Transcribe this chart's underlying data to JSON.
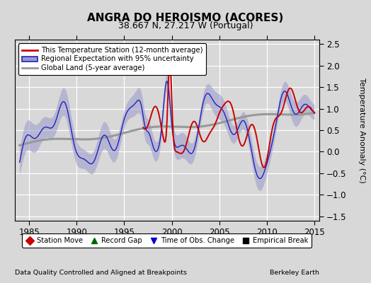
{
  "title": "ANGRA DO HEROISMO (ACORES)",
  "subtitle": "38.667 N, 27.217 W (Portugal)",
  "ylabel": "Temperature Anomaly (°C)",
  "xlabel_left": "Data Quality Controlled and Aligned at Breakpoints",
  "xlabel_right": "Berkeley Earth",
  "xlim": [
    1983.5,
    2015.5
  ],
  "ylim": [
    -1.6,
    2.6
  ],
  "yticks": [
    -1.5,
    -1.0,
    -0.5,
    0.0,
    0.5,
    1.0,
    1.5,
    2.0,
    2.5
  ],
  "xticks": [
    1985,
    1990,
    1995,
    2000,
    2005,
    2010,
    2015
  ],
  "bg_color": "#d8d8d8",
  "plot_bg_color": "#d8d8d8",
  "red_color": "#cc0000",
  "blue_color": "#2222bb",
  "blue_fill_color": "#9999cc",
  "gray_color": "#999999",
  "title_fontsize": 11,
  "subtitle_fontsize": 9,
  "legend_entries": [
    "This Temperature Station (12-month average)",
    "Regional Expectation with 95% uncertainty",
    "Global Land (5-year average)"
  ],
  "marker_entries": [
    {
      "label": "Station Move",
      "color": "#cc0000",
      "marker": "D"
    },
    {
      "label": "Record Gap",
      "color": "#006600",
      "marker": "^"
    },
    {
      "label": "Time of Obs. Change",
      "color": "#0000cc",
      "marker": "v"
    },
    {
      "label": "Empirical Break",
      "color": "#000000",
      "marker": "s"
    }
  ]
}
